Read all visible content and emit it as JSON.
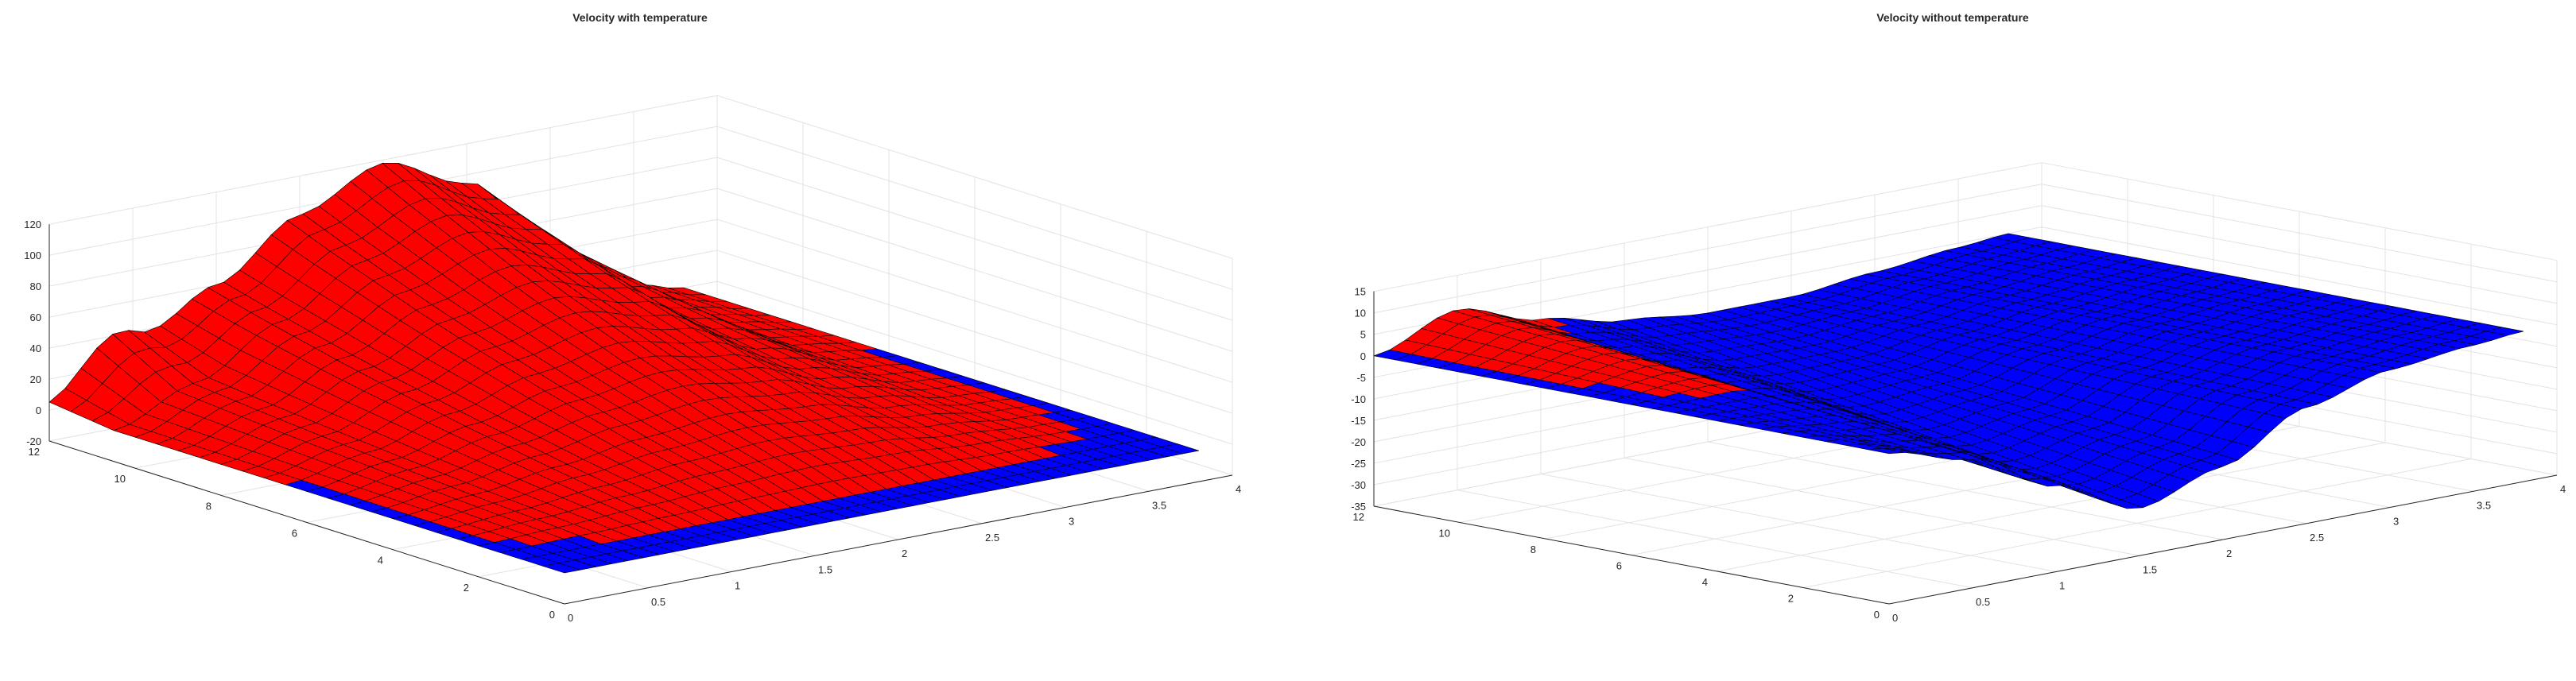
{
  "figure": {
    "background": "#ffffff",
    "surface_edge_color": "#000000",
    "grid_color": "#e3e3e3",
    "axis_color": "#262626"
  },
  "chart_data": [
    {
      "type": "surface",
      "title": "Velocity with temperature",
      "xlabel": "",
      "ylabel": "",
      "zlabel": "",
      "grid": true,
      "xlim": [
        0,
        4
      ],
      "ylim": [
        0,
        12
      ],
      "zlim": [
        -20,
        120
      ],
      "xticks": [
        0,
        0.5,
        1,
        1.5,
        2,
        2.5,
        3,
        3.5,
        4
      ],
      "xtick_labels": [
        "0",
        "0.5",
        "1",
        "1.5",
        "2",
        "2.5",
        "3",
        "3.5",
        "4"
      ],
      "yticks": [
        0,
        2,
        4,
        6,
        8,
        10,
        12
      ],
      "ytick_labels": [
        "0",
        "2",
        "4",
        "6",
        "8",
        "10",
        "12"
      ],
      "zticks": [
        -20,
        0,
        20,
        40,
        60,
        80,
        100,
        120
      ],
      "ztick_labels": [
        "-20",
        "0",
        "20",
        "40",
        "60",
        "80",
        "100",
        "120"
      ],
      "surface_data_extent": {
        "x": [
          0,
          3.8
        ],
        "y": [
          0,
          12
        ]
      },
      "colors": {
        "positive": "#ff0000",
        "nonpositive": "#0000ff"
      },
      "series": [
        {
          "x_values": [
            0,
            0.5,
            1.0,
            1.5,
            2.0,
            2.5,
            3.0,
            3.5,
            3.8
          ],
          "cross_section_at_y_max": [
            0,
            25,
            60,
            95,
            118,
            95,
            45,
            8,
            0
          ],
          "y_scale_at_y": [
            [
              0,
              0.0
            ],
            [
              1,
              0.0
            ],
            [
              2,
              0.08
            ],
            [
              3,
              0.15
            ],
            [
              4,
              0.22
            ],
            [
              5,
              0.3
            ],
            [
              6,
              0.38
            ],
            [
              7,
              0.47
            ],
            [
              8,
              0.56
            ],
            [
              9,
              0.66
            ],
            [
              10,
              0.77
            ],
            [
              11,
              0.88
            ],
            [
              12,
              1.0
            ]
          ],
          "bump_near_y_max": {
            "height": 20,
            "x_center": 0.35,
            "width": 0.3,
            "y_from": 10.5
          }
        }
      ]
    },
    {
      "type": "surface",
      "title": "Velocity without temperature",
      "xlabel": "",
      "ylabel": "",
      "zlabel": "",
      "grid": true,
      "xlim": [
        0,
        4
      ],
      "ylim": [
        0,
        12
      ],
      "zlim": [
        -35,
        15
      ],
      "xticks": [
        0,
        0.5,
        1,
        1.5,
        2,
        2.5,
        3,
        3.5,
        4
      ],
      "xtick_labels": [
        "0",
        "0.5",
        "1",
        "1.5",
        "2",
        "2.5",
        "3",
        "3.5",
        "4"
      ],
      "yticks": [
        0,
        2,
        4,
        6,
        8,
        10,
        12
      ],
      "ytick_labels": [
        "0",
        "2",
        "4",
        "6",
        "8",
        "10",
        "12"
      ],
      "zticks": [
        -35,
        -30,
        -25,
        -20,
        -15,
        -10,
        -5,
        0,
        5,
        10,
        15
      ],
      "ztick_labels": [
        "-35",
        "-30",
        "-25",
        "-20",
        "-15",
        "-10",
        "-5",
        "0",
        "5",
        "10",
        "15"
      ],
      "surface_data_extent": {
        "x": [
          0,
          3.8
        ],
        "y": [
          0,
          12
        ]
      },
      "colors": {
        "positive": "#ff0000",
        "nonpositive": "#0000ff"
      },
      "series": [
        {
          "x_values": [
            0,
            0.5,
            1.0,
            1.5,
            2.0,
            2.5,
            3.0,
            3.5,
            3.8
          ],
          "cross_section_at_y_min": [
            0,
            -5,
            -15,
            -24,
            -18,
            -8,
            -3,
            -1,
            0
          ],
          "cross_section_at_y_max": [
            0,
            7,
            1,
            -3,
            -5,
            -5,
            -3,
            -1,
            0
          ],
          "sign_regions": "red where x is between about 1.0 and 2.0 (shifting with y), blue elsewhere"
        }
      ]
    }
  ]
}
